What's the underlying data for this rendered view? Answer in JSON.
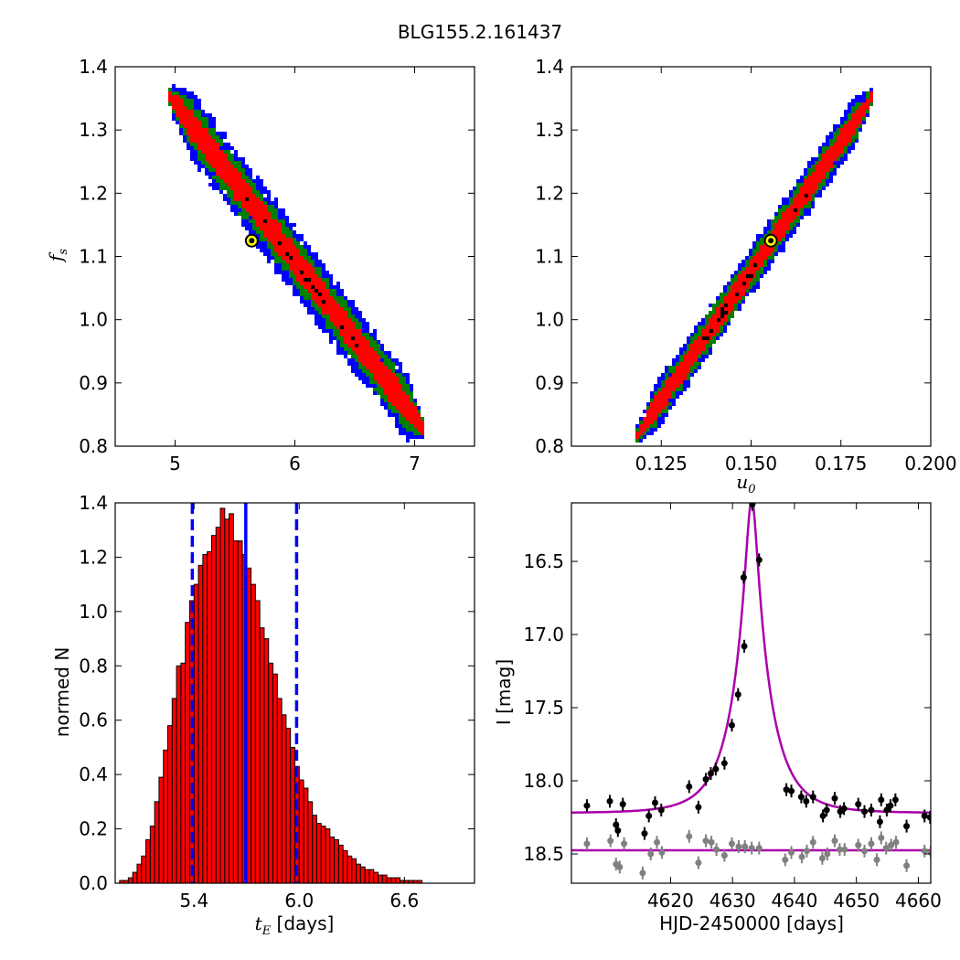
{
  "figure_title": "BLG155.2.161437",
  "chart_data": [
    {
      "type": "heatmap",
      "panel": "tE-fs",
      "xlabel": "",
      "ylabel": "f_s",
      "xlim": [
        4.5,
        7.5
      ],
      "ylim": [
        0.8,
        1.4
      ],
      "xticks": [
        5,
        6,
        7
      ],
      "yticks": [
        0.8,
        0.9,
        1.0,
        1.1,
        1.2,
        1.3,
        1.4
      ],
      "correlation_line": {
        "x": [
          4.95,
          7.05
        ],
        "y": [
          1.35,
          0.83
        ]
      },
      "band_halfwidths_fs": {
        "sigma1_red": 0.02,
        "sigma2_green": 0.035,
        "sigma3_blue": 0.05
      },
      "best_fit": {
        "x": 5.64,
        "y": 1.125
      },
      "colors": {
        "sigma1": "#ff0000",
        "sigma2": "#008000",
        "sigma3": "#0000ff",
        "best_fit": "#ffff00"
      }
    },
    {
      "type": "heatmap",
      "panel": "u0-fs",
      "xlabel": "u_0",
      "ylabel": "",
      "xlim": [
        0.1,
        0.2
      ],
      "ylim": [
        0.8,
        1.4
      ],
      "xticks": [
        0.125,
        0.15,
        0.175,
        0.2
      ],
      "yticks": [
        0.8,
        0.9,
        1.0,
        1.1,
        1.2,
        1.3,
        1.4
      ],
      "correlation_line": {
        "x": [
          0.118,
          0.183
        ],
        "y": [
          0.82,
          1.35
        ]
      },
      "band_halfwidths_fs": {
        "sigma1_red": 0.015,
        "sigma2_green": 0.025,
        "sigma3_blue": 0.035
      },
      "best_fit": {
        "x": 0.1555,
        "y": 1.125
      },
      "colors": {
        "sigma1": "#ff0000",
        "sigma2": "#008000",
        "sigma3": "#0000ff",
        "best_fit": "#ffff00"
      }
    },
    {
      "type": "bar",
      "panel": "tE-histogram",
      "xlabel": "t_E [days]",
      "ylabel": "normed N",
      "xlim": [
        4.95,
        7.0
      ],
      "ylim": [
        0.0,
        1.4
      ],
      "xticks": [
        5.4,
        6.0,
        6.6
      ],
      "yticks": [
        0.0,
        0.2,
        0.4,
        0.6,
        0.8,
        1.0,
        1.2,
        1.4
      ],
      "bin_start": 4.95,
      "bin_width": 0.025,
      "values": [
        0.0,
        0.01,
        0.01,
        0.02,
        0.04,
        0.07,
        0.1,
        0.16,
        0.21,
        0.3,
        0.39,
        0.49,
        0.58,
        0.68,
        0.8,
        0.81,
        0.96,
        1.04,
        1.1,
        1.17,
        1.21,
        1.22,
        1.28,
        1.31,
        1.38,
        1.34,
        1.36,
        1.26,
        1.26,
        1.21,
        1.16,
        1.1,
        1.04,
        0.94,
        0.9,
        0.81,
        0.77,
        0.68,
        0.62,
        0.57,
        0.5,
        0.43,
        0.38,
        0.35,
        0.3,
        0.25,
        0.22,
        0.21,
        0.2,
        0.17,
        0.16,
        0.14,
        0.12,
        0.1,
        0.09,
        0.07,
        0.06,
        0.05,
        0.05,
        0.04,
        0.03,
        0.03,
        0.02,
        0.02,
        0.02,
        0.01,
        0.01,
        0.01,
        0.01,
        0.01,
        0.0,
        0.0
      ],
      "median_line": 5.695,
      "sigma_lines": [
        5.39,
        5.985
      ],
      "colors": {
        "bars": "#ff0000",
        "lines": "#0000ff"
      }
    },
    {
      "type": "scatter",
      "panel": "light-curve",
      "xlabel": "HJD-2450000 [days]",
      "ylabel": "I [mag]",
      "xlim": [
        4604,
        4662
      ],
      "ylim": [
        18.7,
        16.1
      ],
      "xticks": [
        4620,
        4630,
        4640,
        4650,
        4660
      ],
      "yticks": [
        16.5,
        17.0,
        17.5,
        18.0,
        18.5
      ],
      "model": {
        "t0": 4633.1,
        "tE": 5.69,
        "u0": 0.1555,
        "fs": 1.125,
        "I0": 18.22
      },
      "baseline_model": 18.475,
      "series": [
        {
          "name": "",
          "color": "#000000",
          "x": [
            4606.5,
            4610.2,
            4611.2,
            4611.5,
            4612.3,
            4615.8,
            4616.5,
            4617.5,
            4618.5,
            4623,
            4624.5,
            4625.7,
            4626.5,
            4627.3,
            4628.7,
            4629.9,
            4630.9,
            4631.9,
            4631.8,
            4633.2,
            4634.3,
            4638.7,
            4639.5,
            4641.1,
            4641.9,
            4643.0,
            4644.6,
            4645.2,
            4646.5,
            4647.4,
            4648.0,
            4650.3,
            4651.3,
            4652.4,
            4653.8,
            4654.0,
            4654.9,
            4655.5,
            4656.3,
            4658.1,
            4661.0,
            4661.9
          ],
          "y": [
            18.17,
            18.14,
            18.3,
            18.34,
            18.16,
            18.36,
            18.24,
            18.15,
            18.2,
            18.04,
            18.18,
            17.99,
            17.95,
            17.92,
            17.88,
            17.62,
            17.41,
            17.08,
            16.61,
            16.11,
            16.49,
            18.06,
            18.07,
            18.11,
            18.14,
            18.11,
            18.24,
            18.2,
            18.12,
            18.21,
            18.19,
            18.16,
            18.21,
            18.2,
            18.28,
            18.13,
            18.2,
            18.17,
            18.13,
            18.31,
            18.24,
            18.25
          ]
        },
        {
          "name": "",
          "color": "#808080",
          "x": [
            4606.5,
            4610.3,
            4611.2,
            4611.8,
            4612.5,
            4615.5,
            4616.8,
            4617.8,
            4618.6,
            4623,
            4624.5,
            4625.7,
            4626.6,
            4627.4,
            4628.7,
            4629.9,
            4631.0,
            4632.0,
            4633.1,
            4634.3,
            4638.5,
            4639.5,
            4641.2,
            4642.0,
            4643.0,
            4644.5,
            4645.3,
            4646.5,
            4647.3,
            4648.1,
            4650.3,
            4651.3,
            4652.4,
            4653.3,
            4654.0,
            4654.8,
            4655.6,
            4656.4,
            4658.1,
            4661.0,
            4662.0
          ],
          "y": [
            18.43,
            18.41,
            18.57,
            18.59,
            18.43,
            18.63,
            18.5,
            18.42,
            18.49,
            18.38,
            18.56,
            18.41,
            18.42,
            18.47,
            18.51,
            18.43,
            18.45,
            18.45,
            18.46,
            18.46,
            18.54,
            18.49,
            18.52,
            18.48,
            18.42,
            18.53,
            18.5,
            18.41,
            18.47,
            18.47,
            18.44,
            18.48,
            18.43,
            18.54,
            18.39,
            18.46,
            18.44,
            18.42,
            18.58,
            18.48,
            18.49
          ]
        }
      ],
      "colors": {
        "model": "#aa00aa"
      }
    }
  ]
}
